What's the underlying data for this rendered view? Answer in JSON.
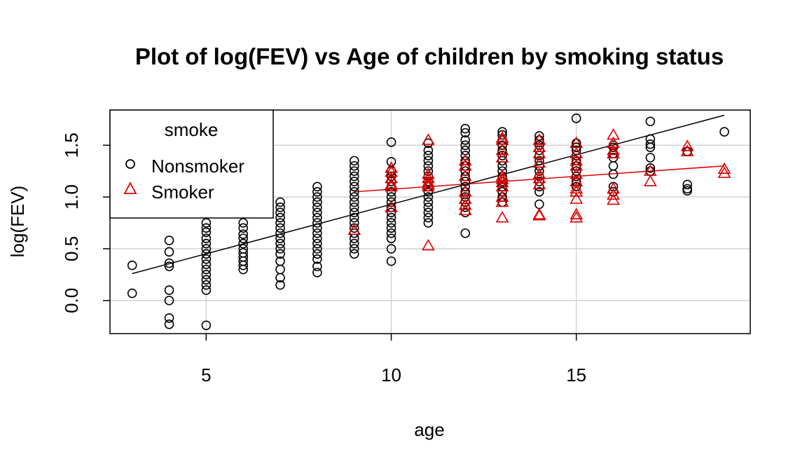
{
  "chart_data": {
    "type": "scatter",
    "title": "Plot of log(FEV) vs Age of children by smoking  status",
    "xlabel": "age",
    "ylabel": "log(FEV)",
    "xlim": [
      2.4,
      19.7
    ],
    "ylim": [
      -0.32,
      1.84
    ],
    "xticks": [
      5,
      10,
      15
    ],
    "yticks": [
      0.0,
      0.5,
      1.0,
      1.5
    ],
    "grid": true,
    "legend": {
      "title": "smoke",
      "position": "top-left",
      "entries": [
        {
          "label": "Nonsmoker",
          "marker": "circle",
          "color": "#000000"
        },
        {
          "label": "Smoker",
          "marker": "triangle",
          "color": "#dd0000"
        }
      ]
    },
    "series": [
      {
        "name": "Nonsmoker",
        "color": "#000000",
        "marker": "circle",
        "points": [
          [
            3,
            0.34
          ],
          [
            3,
            0.07
          ],
          [
            4,
            0.58
          ],
          [
            4,
            0.47
          ],
          [
            4,
            0.36
          ],
          [
            4,
            0.33
          ],
          [
            4,
            0.1
          ],
          [
            4,
            0.0
          ],
          [
            4,
            -0.17
          ],
          [
            4,
            -0.23
          ],
          [
            5,
            0.75
          ],
          [
            5,
            0.7
          ],
          [
            5,
            0.66
          ],
          [
            5,
            0.6
          ],
          [
            5,
            0.55
          ],
          [
            5,
            0.5
          ],
          [
            5,
            0.45
          ],
          [
            5,
            0.4
          ],
          [
            5,
            0.35
          ],
          [
            5,
            0.3
          ],
          [
            5,
            0.25
          ],
          [
            5,
            0.2
          ],
          [
            5,
            0.15
          ],
          [
            5,
            0.1
          ],
          [
            5,
            -0.24
          ],
          [
            6,
            0.75
          ],
          [
            6,
            0.7
          ],
          [
            6,
            0.64
          ],
          [
            6,
            0.6
          ],
          [
            6,
            0.55
          ],
          [
            6,
            0.5
          ],
          [
            6,
            0.46
          ],
          [
            6,
            0.42
          ],
          [
            6,
            0.38
          ],
          [
            6,
            0.34
          ],
          [
            6,
            0.3
          ],
          [
            7,
            0.95
          ],
          [
            7,
            0.9
          ],
          [
            7,
            0.85
          ],
          [
            7,
            0.8
          ],
          [
            7,
            0.75
          ],
          [
            7,
            0.7
          ],
          [
            7,
            0.65
          ],
          [
            7,
            0.6
          ],
          [
            7,
            0.55
          ],
          [
            7,
            0.5
          ],
          [
            7,
            0.45
          ],
          [
            7,
            0.38
          ],
          [
            7,
            0.3
          ],
          [
            7,
            0.22
          ],
          [
            7,
            0.15
          ],
          [
            8,
            1.1
          ],
          [
            8,
            1.05
          ],
          [
            8,
            1.0
          ],
          [
            8,
            0.95
          ],
          [
            8,
            0.9
          ],
          [
            8,
            0.85
          ],
          [
            8,
            0.8
          ],
          [
            8,
            0.75
          ],
          [
            8,
            0.7
          ],
          [
            8,
            0.65
          ],
          [
            8,
            0.6
          ],
          [
            8,
            0.55
          ],
          [
            8,
            0.5
          ],
          [
            8,
            0.45
          ],
          [
            8,
            0.4
          ],
          [
            8,
            0.33
          ],
          [
            8,
            0.27
          ],
          [
            9,
            1.35
          ],
          [
            9,
            1.3
          ],
          [
            9,
            1.25
          ],
          [
            9,
            1.2
          ],
          [
            9,
            1.15
          ],
          [
            9,
            1.1
          ],
          [
            9,
            1.05
          ],
          [
            9,
            1.0
          ],
          [
            9,
            0.95
          ],
          [
            9,
            0.9
          ],
          [
            9,
            0.85
          ],
          [
            9,
            0.8
          ],
          [
            9,
            0.75
          ],
          [
            9,
            0.7
          ],
          [
            9,
            0.65
          ],
          [
            9,
            0.6
          ],
          [
            9,
            0.55
          ],
          [
            9,
            0.5
          ],
          [
            9,
            0.45
          ],
          [
            10,
            1.53
          ],
          [
            10,
            1.34
          ],
          [
            10,
            1.25
          ],
          [
            10,
            1.2
          ],
          [
            10,
            1.15
          ],
          [
            10,
            1.1
          ],
          [
            10,
            1.05
          ],
          [
            10,
            1.0
          ],
          [
            10,
            0.95
          ],
          [
            10,
            0.9
          ],
          [
            10,
            0.85
          ],
          [
            10,
            0.8
          ],
          [
            10,
            0.75
          ],
          [
            10,
            0.7
          ],
          [
            10,
            0.65
          ],
          [
            10,
            0.6
          ],
          [
            10,
            0.5
          ],
          [
            10,
            0.38
          ],
          [
            11,
            1.52
          ],
          [
            11,
            1.45
          ],
          [
            11,
            1.4
          ],
          [
            11,
            1.35
          ],
          [
            11,
            1.3
          ],
          [
            11,
            1.25
          ],
          [
            11,
            1.2
          ],
          [
            11,
            1.15
          ],
          [
            11,
            1.1
          ],
          [
            11,
            1.05
          ],
          [
            11,
            1.0
          ],
          [
            11,
            0.95
          ],
          [
            11,
            0.9
          ],
          [
            11,
            0.85
          ],
          [
            11,
            0.8
          ],
          [
            11,
            0.75
          ],
          [
            12,
            1.66
          ],
          [
            12,
            1.62
          ],
          [
            12,
            1.55
          ],
          [
            12,
            1.5
          ],
          [
            12,
            1.45
          ],
          [
            12,
            1.4
          ],
          [
            12,
            1.35
          ],
          [
            12,
            1.3
          ],
          [
            12,
            1.25
          ],
          [
            12,
            1.2
          ],
          [
            12,
            1.15
          ],
          [
            12,
            1.1
          ],
          [
            12,
            1.05
          ],
          [
            12,
            1.0
          ],
          [
            12,
            0.95
          ],
          [
            12,
            0.9
          ],
          [
            12,
            0.85
          ],
          [
            12,
            0.65
          ],
          [
            13,
            1.63
          ],
          [
            13,
            1.6
          ],
          [
            13,
            1.55
          ],
          [
            13,
            1.5
          ],
          [
            13,
            1.45
          ],
          [
            13,
            1.4
          ],
          [
            13,
            1.35
          ],
          [
            13,
            1.3
          ],
          [
            13,
            1.25
          ],
          [
            13,
            1.2
          ],
          [
            13,
            1.15
          ],
          [
            13,
            1.1
          ],
          [
            13,
            1.05
          ],
          [
            13,
            1.0
          ],
          [
            13,
            0.95
          ],
          [
            14,
            1.59
          ],
          [
            14,
            1.55
          ],
          [
            14,
            1.5
          ],
          [
            14,
            1.45
          ],
          [
            14,
            1.4
          ],
          [
            14,
            1.35
          ],
          [
            14,
            1.3
          ],
          [
            14,
            1.25
          ],
          [
            14,
            1.2
          ],
          [
            14,
            1.15
          ],
          [
            14,
            1.1
          ],
          [
            14,
            1.05
          ],
          [
            14,
            0.93
          ],
          [
            15,
            1.76
          ],
          [
            15,
            1.52
          ],
          [
            15,
            1.48
          ],
          [
            15,
            1.45
          ],
          [
            15,
            1.4
          ],
          [
            15,
            1.35
          ],
          [
            15,
            1.3
          ],
          [
            15,
            1.25
          ],
          [
            15,
            1.2
          ],
          [
            15,
            1.15
          ],
          [
            15,
            1.1
          ],
          [
            16,
            1.5
          ],
          [
            16,
            1.48
          ],
          [
            16,
            1.42
          ],
          [
            16,
            1.38
          ],
          [
            16,
            1.3
          ],
          [
            16,
            1.22
          ],
          [
            16,
            1.1
          ],
          [
            16,
            1.05
          ],
          [
            17,
            1.73
          ],
          [
            17,
            1.56
          ],
          [
            17,
            1.51
          ],
          [
            17,
            1.48
          ],
          [
            17,
            1.38
          ],
          [
            17,
            1.28
          ],
          [
            17,
            1.25
          ],
          [
            18,
            1.44
          ],
          [
            18,
            1.12
          ],
          [
            18,
            1.08
          ],
          [
            18,
            1.06
          ],
          [
            19,
            1.63
          ]
        ]
      },
      {
        "name": "Smoker",
        "color": "#dd0000",
        "marker": "triangle",
        "points": [
          [
            9,
            0.68
          ],
          [
            10,
            1.28
          ],
          [
            10,
            1.24
          ],
          [
            10,
            1.18
          ],
          [
            10,
            1.12
          ],
          [
            10,
            1.1
          ],
          [
            10,
            0.9
          ],
          [
            11,
            1.55
          ],
          [
            11,
            1.22
          ],
          [
            11,
            1.18
          ],
          [
            11,
            1.14
          ],
          [
            11,
            1.12
          ],
          [
            11,
            1.1
          ],
          [
            11,
            0.53
          ],
          [
            12,
            1.35
          ],
          [
            12,
            1.3
          ],
          [
            12,
            1.2
          ],
          [
            12,
            1.05
          ],
          [
            12,
            0.98
          ],
          [
            12,
            0.92
          ],
          [
            12,
            0.87
          ],
          [
            13,
            1.57
          ],
          [
            13,
            1.55
          ],
          [
            13,
            1.45
          ],
          [
            13,
            1.38
          ],
          [
            13,
            1.2
          ],
          [
            13,
            1.17
          ],
          [
            13,
            1.14
          ],
          [
            13,
            1.1
          ],
          [
            13,
            1.0
          ],
          [
            13,
            0.95
          ],
          [
            13,
            0.8
          ],
          [
            14,
            1.55
          ],
          [
            14,
            1.48
          ],
          [
            14,
            1.42
          ],
          [
            14,
            1.33
          ],
          [
            14,
            1.22
          ],
          [
            14,
            1.18
          ],
          [
            14,
            1.12
          ],
          [
            14,
            0.83
          ],
          [
            14,
            0.82
          ],
          [
            15,
            1.52
          ],
          [
            15,
            1.42
          ],
          [
            15,
            1.35
          ],
          [
            15,
            1.3
          ],
          [
            15,
            1.22
          ],
          [
            15,
            1.15
          ],
          [
            15,
            1.08
          ],
          [
            15,
            1.05
          ],
          [
            15,
            0.98
          ],
          [
            15,
            0.83
          ],
          [
            15,
            0.8
          ],
          [
            16,
            1.6
          ],
          [
            16,
            1.52
          ],
          [
            16,
            1.45
          ],
          [
            16,
            1.42
          ],
          [
            16,
            1.08
          ],
          [
            16,
            1.02
          ],
          [
            16,
            0.97
          ],
          [
            17,
            1.25
          ],
          [
            17,
            1.15
          ],
          [
            18,
            1.49
          ],
          [
            18,
            1.44
          ],
          [
            19,
            1.27
          ],
          [
            19,
            1.23
          ]
        ]
      }
    ],
    "fit_lines": [
      {
        "name": "Nonsmoker",
        "color": "#000000",
        "x": [
          3,
          19
        ],
        "y": [
          0.26,
          1.79
        ]
      },
      {
        "name": "Smoker",
        "color": "#dd0000",
        "x": [
          9,
          19
        ],
        "y": [
          1.05,
          1.3
        ]
      }
    ]
  }
}
